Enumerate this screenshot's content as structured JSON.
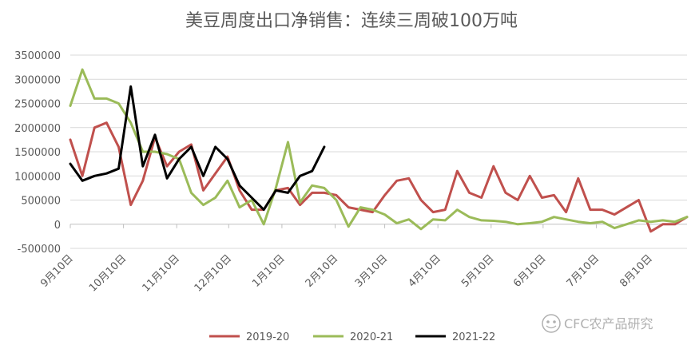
{
  "chart_data": {
    "type": "line",
    "title": "美豆周度出口净销售：连续三周破100万吨",
    "ylim": [
      -500000,
      3500000
    ],
    "yticks": [
      -500000,
      0,
      500000,
      1000000,
      1500000,
      2000000,
      2500000,
      3000000,
      3500000
    ],
    "ytick_labels": [
      "-500000",
      "0",
      "500000",
      "1000000",
      "1500000",
      "2000000",
      "2500000",
      "3000000",
      "3500000"
    ],
    "grid": true,
    "legend_position": "bottom",
    "x_count": 52,
    "xticks": [
      {
        "label": "9月10日",
        "index": 0
      },
      {
        "label": "10月10日",
        "index": 4.4
      },
      {
        "label": "11月10日",
        "index": 8.8
      },
      {
        "label": "12月10日",
        "index": 13.1
      },
      {
        "label": "1月10日",
        "index": 17.5
      },
      {
        "label": "2月10日",
        "index": 21.9
      },
      {
        "label": "3月10日",
        "index": 26.0
      },
      {
        "label": "4月10日",
        "index": 30.4
      },
      {
        "label": "5月10日",
        "index": 34.8
      },
      {
        "label": "6月10日",
        "index": 39.1
      },
      {
        "label": "7月10日",
        "index": 43.5
      },
      {
        "label": "8月10日",
        "index": 47.9
      }
    ],
    "series": [
      {
        "name": "2019-20",
        "color": "#c0504d",
        "values": [
          1750000,
          1000000,
          2000000,
          2100000,
          1600000,
          400000,
          900000,
          1800000,
          1200000,
          1500000,
          1650000,
          700000,
          1050000,
          1400000,
          700000,
          300000,
          300000,
          700000,
          750000,
          400000,
          650000,
          650000,
          600000,
          350000,
          300000,
          250000,
          600000,
          900000,
          950000,
          500000,
          250000,
          300000,
          1100000,
          650000,
          550000,
          1200000,
          650000,
          500000,
          1000000,
          550000,
          600000,
          250000,
          950000,
          300000,
          300000,
          200000,
          350000,
          500000,
          -150000,
          0,
          0,
          150000
        ]
      },
      {
        "name": "2020-21",
        "color": "#9bbb59",
        "values": [
          2450000,
          3200000,
          2600000,
          2600000,
          2500000,
          2100000,
          1500000,
          1500000,
          1450000,
          1350000,
          650000,
          400000,
          550000,
          900000,
          350000,
          500000,
          0,
          750000,
          1700000,
          450000,
          800000,
          750000,
          500000,
          -50000,
          350000,
          300000,
          200000,
          20000,
          100000,
          -100000,
          100000,
          80000,
          300000,
          150000,
          80000,
          70000,
          50000,
          0,
          20000,
          50000,
          150000,
          100000,
          50000,
          20000,
          50000,
          -80000,
          0,
          80000,
          50000,
          80000,
          50000,
          150000
        ]
      },
      {
        "name": "2021-22",
        "color": "#000000",
        "values": [
          1250000,
          900000,
          1000000,
          1050000,
          1150000,
          2850000,
          1200000,
          1850000,
          950000,
          1350000,
          1600000,
          1000000,
          1600000,
          1350000,
          800000,
          550000,
          300000,
          700000,
          650000,
          1000000,
          1100000,
          1600000
        ]
      }
    ]
  },
  "watermark": {
    "icon": "wechat-icon",
    "text": "CFC农产品研究"
  }
}
